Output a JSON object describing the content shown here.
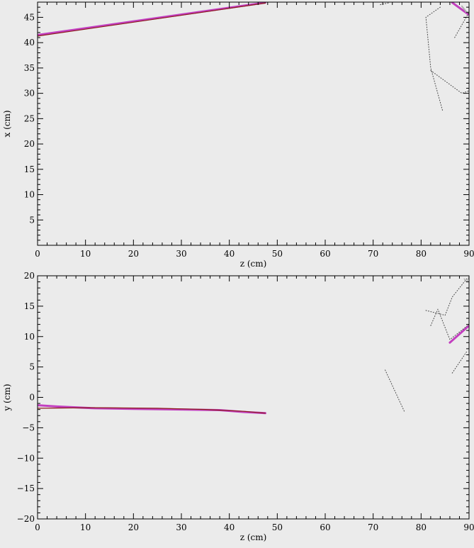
{
  "chart_data": [
    {
      "type": "line",
      "title": "",
      "xlabel": "z (cm)",
      "ylabel": "x (cm)",
      "xlim": [
        0,
        90
      ],
      "ylim": [
        0,
        48
      ],
      "x_ticks": [
        0,
        10,
        20,
        30,
        40,
        50,
        60,
        70,
        80,
        90
      ],
      "y_ticks": [
        5,
        10,
        15,
        20,
        25,
        30,
        35,
        40,
        45
      ],
      "grid": false,
      "series": [
        {
          "style": "track",
          "color": "#c23fbf",
          "width": 3,
          "x": [
            0,
            47.5
          ],
          "y": [
            41.5,
            47.9
          ]
        },
        {
          "style": "track",
          "color": "#8b1a1a",
          "width": 1.2,
          "x": [
            0,
            47.5
          ],
          "y": [
            41.3,
            47.8
          ]
        },
        {
          "style": "track",
          "color": "#c23fbf",
          "width": 3,
          "x": [
            86.5,
            90
          ],
          "y": [
            47.9,
            45.5
          ]
        },
        {
          "style": "track",
          "color": "#b0b0b0",
          "width": 2,
          "x": [
            88.5,
            89.5
          ],
          "y": [
            47.2,
            46.0
          ]
        },
        {
          "style": "dotted",
          "color": "#444444",
          "width": 1,
          "x": [
            84,
            81,
            82,
            84.5
          ],
          "y": [
            47,
            45,
            35,
            26.5
          ]
        },
        {
          "style": "dotted",
          "color": "#444444",
          "width": 1,
          "x": [
            82,
            88.5,
            90
          ],
          "y": [
            34.5,
            30,
            30.5
          ]
        },
        {
          "style": "dotted",
          "color": "#444444",
          "width": 1,
          "x": [
            87,
            90
          ],
          "y": [
            41,
            46
          ]
        },
        {
          "style": "dotted",
          "color": "#444444",
          "width": 1,
          "x": [
            71.5,
            73.5
          ],
          "y": [
            47.5,
            47.9
          ]
        }
      ]
    },
    {
      "type": "line",
      "title": "",
      "xlabel": "z (cm)",
      "ylabel": "y (cm)",
      "xlim": [
        0,
        90
      ],
      "ylim": [
        -20,
        20
      ],
      "x_ticks": [
        0,
        10,
        20,
        30,
        40,
        50,
        60,
        70,
        80,
        90
      ],
      "y_ticks": [
        -20,
        -15,
        -10,
        -5,
        0,
        5,
        10,
        15,
        20
      ],
      "grid": false,
      "series": [
        {
          "style": "track",
          "color": "#c23fbf",
          "width": 3,
          "x": [
            0,
            4,
            12,
            20,
            30,
            38,
            43,
            47.5
          ],
          "y": [
            -1.3,
            -1.5,
            -1.8,
            -1.9,
            -2.0,
            -2.1,
            -2.4,
            -2.6
          ]
        },
        {
          "style": "track",
          "color": "#8b1a1a",
          "width": 1.2,
          "x": [
            0,
            12,
            25,
            35,
            43,
            47.5
          ],
          "y": [
            -1.8,
            -1.7,
            -1.8,
            -2.0,
            -2.3,
            -2.6
          ]
        },
        {
          "style": "track",
          "color": "#c23fbf",
          "width": 3,
          "x": [
            86,
            90
          ],
          "y": [
            9.0,
            11.8
          ]
        },
        {
          "style": "dotted",
          "color": "#444444",
          "width": 1,
          "x": [
            72.5,
            76.5
          ],
          "y": [
            4.5,
            -2.3
          ]
        },
        {
          "style": "dotted",
          "color": "#444444",
          "width": 1,
          "x": [
            81,
            85,
            86.5,
            89.5
          ],
          "y": [
            14.3,
            13.5,
            16.5,
            19.5
          ]
        },
        {
          "style": "dotted",
          "color": "#444444",
          "width": 1,
          "x": [
            82,
            83.5,
            86,
            90
          ],
          "y": [
            11.8,
            14.5,
            9.5,
            12
          ]
        },
        {
          "style": "dotted",
          "color": "#444444",
          "width": 1,
          "x": [
            86.5,
            89.5
          ],
          "y": [
            4.0,
            7.5
          ]
        },
        {
          "style": "track",
          "color": "#b0b0b0",
          "width": 1.5,
          "x": [
            89,
            89.5,
            90
          ],
          "y": [
            19.5,
            19.0,
            19.8
          ]
        }
      ]
    }
  ]
}
